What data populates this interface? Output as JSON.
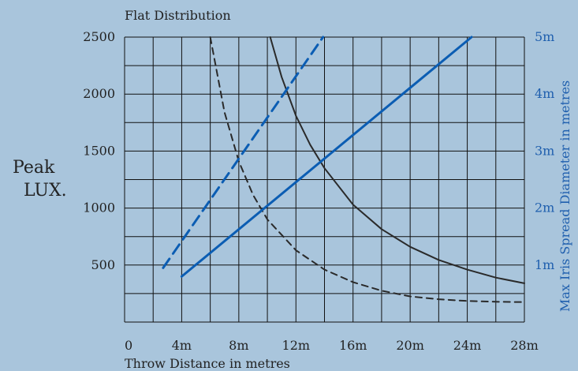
{
  "chart_data": {
    "type": "line",
    "title": "Flat Distribution",
    "xlabel": "Throw Distance in metres",
    "ylabel_left": "Peak LUX.",
    "ylabel_right": "Max Iris Spread Diameter in metres",
    "x_ticks": [
      "0",
      "4m",
      "8m",
      "12m",
      "16m",
      "20m",
      "24m",
      "28m"
    ],
    "y_left_ticks": [
      "500",
      "1000",
      "1500",
      "2000",
      "2500"
    ],
    "y_right_ticks": [
      "1m",
      "2m",
      "3m",
      "4m",
      "5m"
    ],
    "xlim": [
      0,
      28
    ],
    "ylim_left": [
      0,
      2500
    ],
    "ylim_right": [
      0,
      5
    ],
    "grid": true,
    "colors": {
      "background": "#a9c5dc",
      "black": "#2a2a2a",
      "blue": "#0b5db3"
    },
    "series": [
      {
        "axis": "left",
        "style": "solid",
        "color": "#2a2a2a",
        "x": [
          10.2,
          11,
          12,
          13,
          14,
          16,
          18,
          20,
          22,
          24,
          26,
          28
        ],
        "y": [
          2500,
          2150,
          1810,
          1555,
          1350,
          1030,
          815,
          660,
          545,
          460,
          390,
          340
        ]
      },
      {
        "axis": "left",
        "style": "dashed",
        "color": "#2a2a2a",
        "x": [
          6.0,
          7,
          8,
          9,
          10,
          12,
          14,
          16,
          18,
          20,
          22,
          24,
          26,
          28
        ],
        "y": [
          2500,
          1840,
          1410,
          1115,
          900,
          630,
          460,
          350,
          275,
          225,
          200,
          185,
          178,
          175
        ]
      },
      {
        "axis": "right",
        "style": "solid",
        "color": "#0b5db3",
        "x": [
          4,
          24.3
        ],
        "y": [
          0.8,
          5.0
        ]
      },
      {
        "axis": "right",
        "style": "dashed",
        "color": "#0b5db3",
        "x": [
          2.7,
          13.9
        ],
        "y": [
          0.95,
          5.0
        ]
      }
    ]
  }
}
